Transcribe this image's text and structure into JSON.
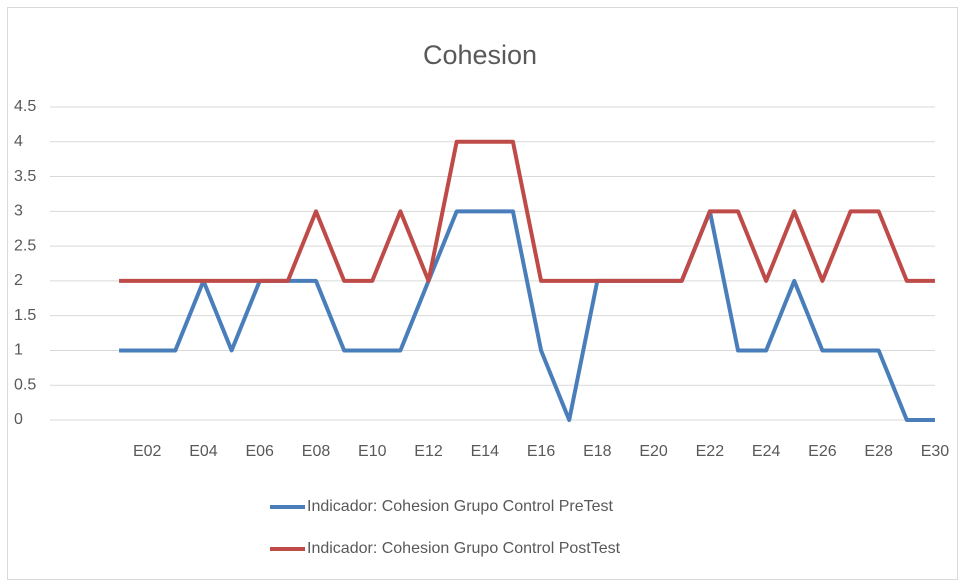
{
  "chart_data": {
    "type": "line",
    "title": "Cohesion",
    "categories": [
      null,
      "E02",
      null,
      "E04",
      null,
      "E06",
      null,
      "E08",
      null,
      "E10",
      null,
      "E12",
      null,
      "E14",
      null,
      "E16",
      null,
      "E18",
      null,
      "E20",
      null,
      "E22",
      null,
      "E24",
      null,
      "E26",
      null,
      "E28",
      null,
      "E30"
    ],
    "series": [
      {
        "name": "Indicador: Cohesion Grupo Control PreTest",
        "color": "#4a7ebb",
        "values": [
          1,
          1,
          1,
          2,
          1,
          2,
          2,
          2,
          1,
          1,
          1,
          2,
          3,
          3,
          3,
          1,
          0,
          2,
          2,
          2,
          2,
          3,
          1,
          1,
          2,
          1,
          1,
          1,
          0,
          0
        ]
      },
      {
        "name": "Indicador: Cohesion Grupo Control PostTest",
        "color": "#be4b48",
        "values": [
          2,
          2,
          2,
          2,
          2,
          2,
          2,
          3,
          2,
          2,
          3,
          2,
          4,
          4,
          4,
          2,
          2,
          2,
          2,
          2,
          2,
          3,
          3,
          2,
          3,
          2,
          3,
          3,
          2,
          2
        ]
      }
    ],
    "ylim": [
      0,
      4.5
    ],
    "yticks": [
      0,
      0.5,
      1,
      1.5,
      2,
      2.5,
      3,
      3.5,
      4,
      4.5
    ],
    "grid": true,
    "legend": "bottom"
  }
}
